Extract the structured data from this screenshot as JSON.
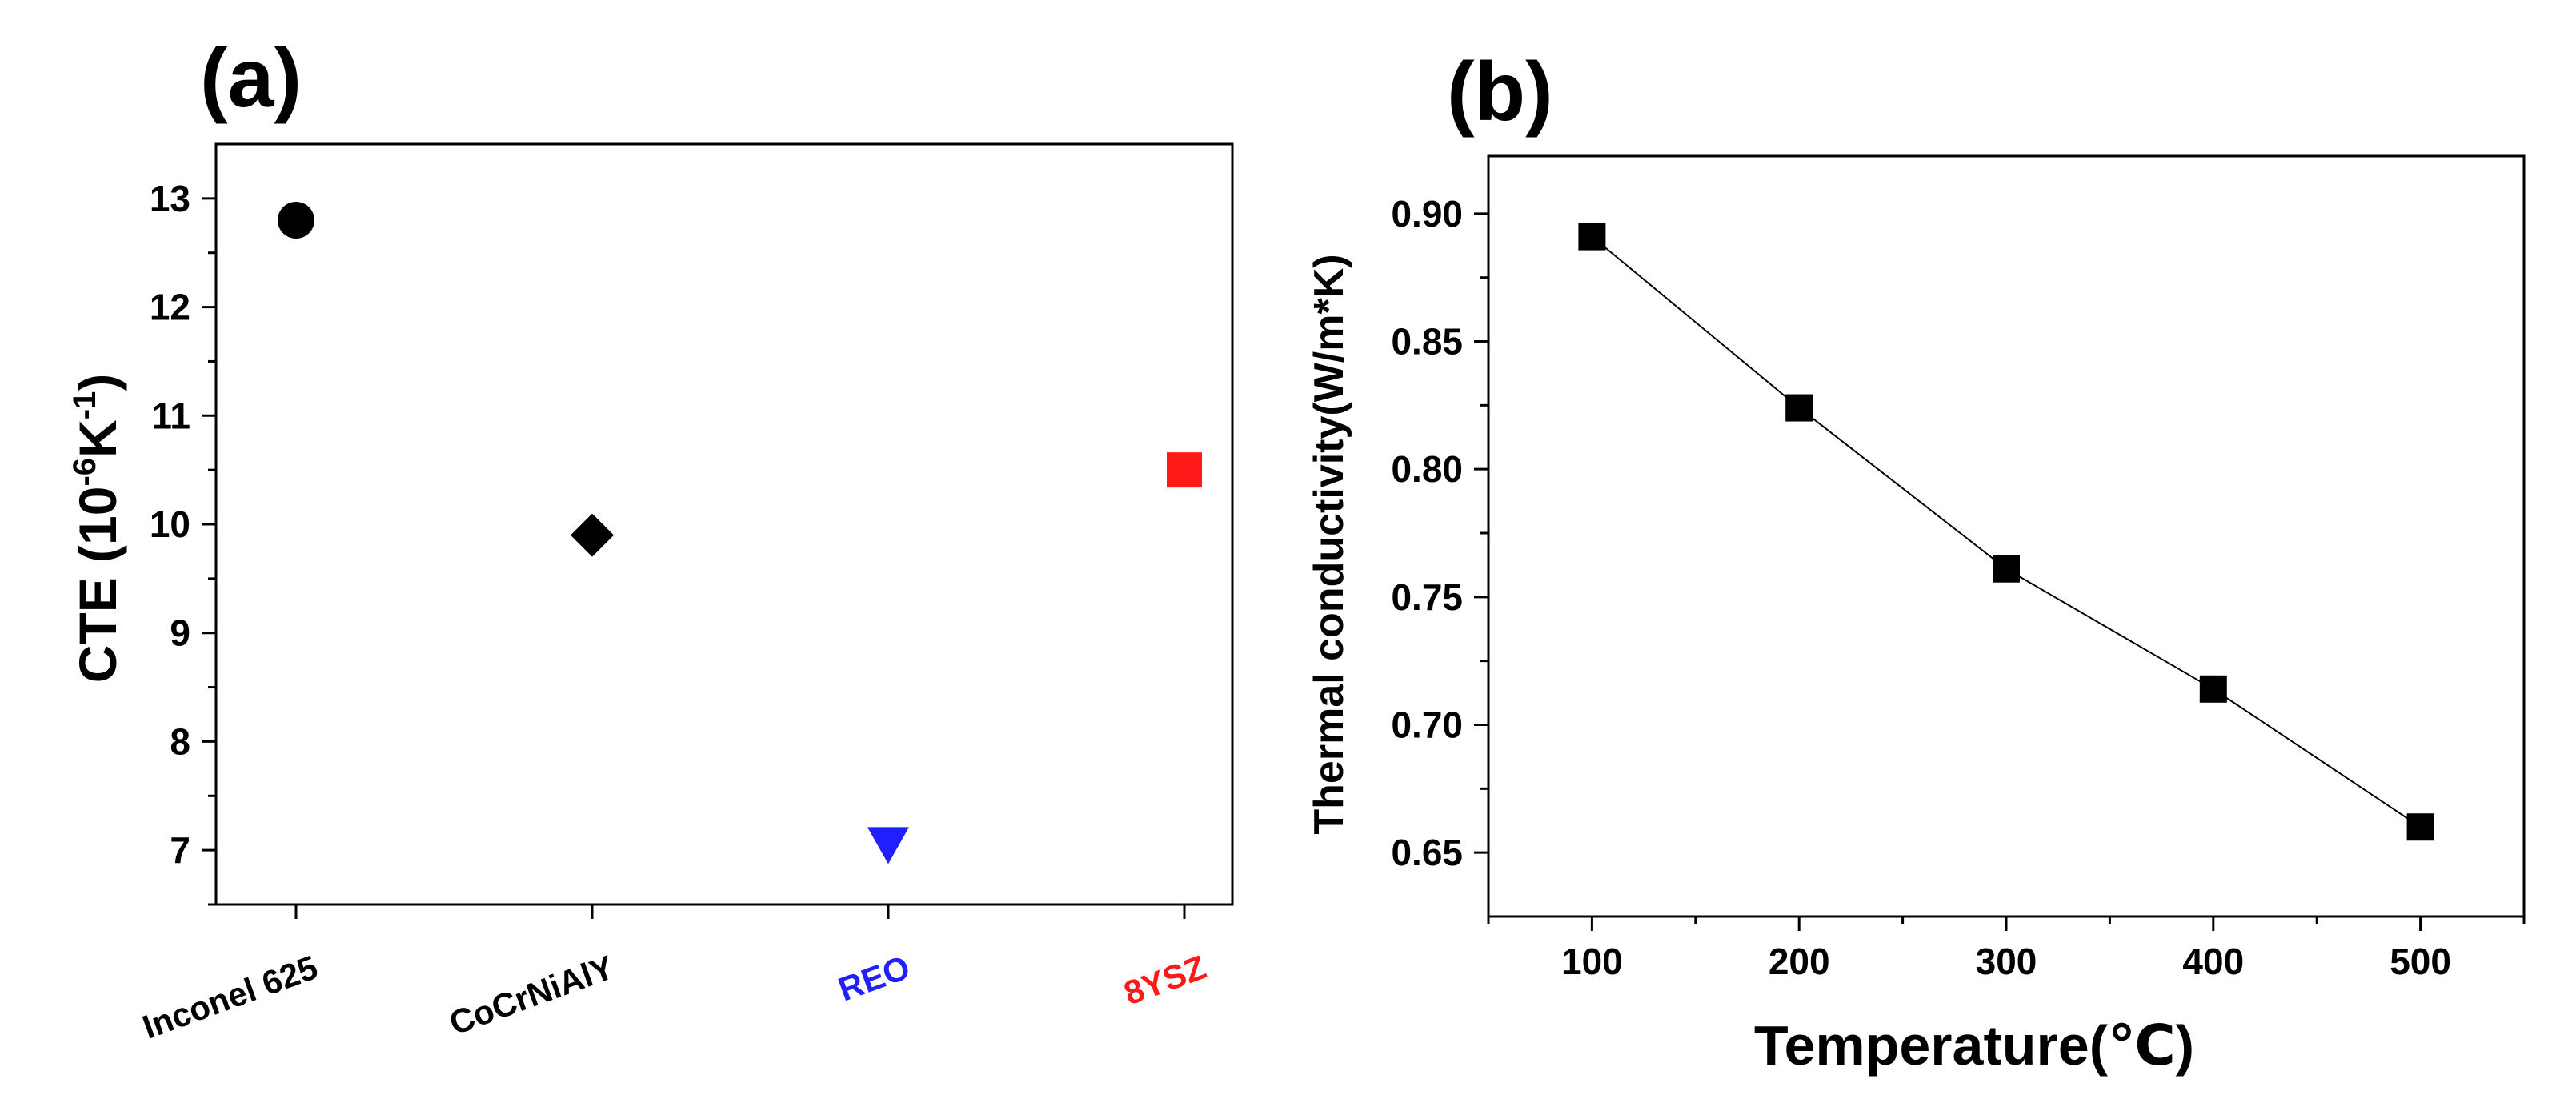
{
  "chart_data": [
    {
      "panel": "(a)",
      "type": "scatter",
      "ylabel_main": "CTE (10",
      "ylabel_exp1": "-6",
      "ylabel_unit": "K",
      "ylabel_exp2": "-1",
      "ylabel_close": ")",
      "ylim": [
        6.5,
        13.5
      ],
      "yticks": [
        "7",
        "8",
        "9",
        "10",
        "11",
        "12",
        "13"
      ],
      "categories": [
        "Inconel 625",
        "CoCrNiAlY",
        "REO",
        "8YSZ"
      ],
      "points": [
        {
          "category": "Inconel 625",
          "value": 12.8,
          "marker": "circle",
          "color": "#000000"
        },
        {
          "category": "CoCrNiAlY",
          "value": 9.9,
          "marker": "diamond",
          "color": "#000000"
        },
        {
          "category": "REO",
          "value": 7.05,
          "marker": "triangle-down",
          "color": "#1f1fff"
        },
        {
          "category": "8YSZ",
          "value": 10.5,
          "marker": "square",
          "color": "#ff1a1a"
        }
      ],
      "label_colors": [
        "#000000",
        "#000000",
        "#1f1fff",
        "#ff1a1a"
      ]
    },
    {
      "panel": "(b)",
      "type": "line",
      "xlabel": "Temperature(℃)",
      "ylabel": "Thermal conductivity(W/m*K)",
      "xlim": [
        50,
        550
      ],
      "ylim": [
        0.625,
        0.9225
      ],
      "xticks": [
        "100",
        "200",
        "300",
        "400",
        "500"
      ],
      "yticks": [
        "0.65",
        "0.70",
        "0.75",
        "0.80",
        "0.85",
        "0.90"
      ],
      "series": [
        {
          "name": "Thermal conductivity",
          "x": [
            100,
            200,
            300,
            400,
            500
          ],
          "y": [
            0.891,
            0.824,
            0.761,
            0.714,
            0.66
          ],
          "marker": "square",
          "color": "#000000"
        }
      ]
    }
  ]
}
